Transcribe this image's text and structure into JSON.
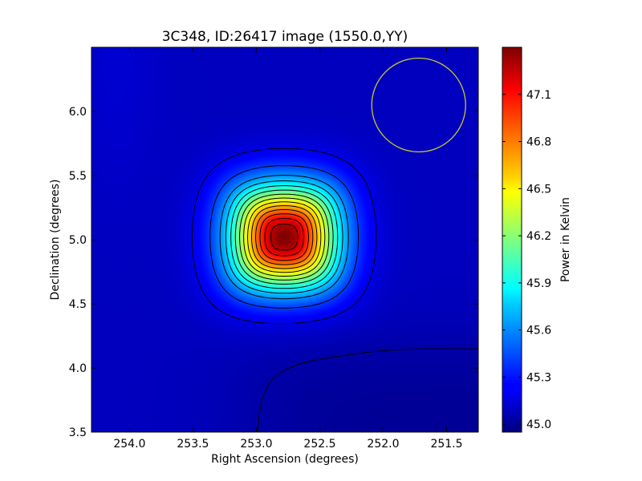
{
  "chart_data": {
    "type": "heatmap",
    "title": "3C348, ID:26417 image (1550.0,YY)",
    "xlabel": "Right Ascension (degrees)",
    "ylabel": "Declination (degrees)",
    "colorbar_label": "Power in Kelvin",
    "x_reversed": true,
    "xlim": [
      254.3,
      251.25
    ],
    "ylim": [
      3.5,
      6.5
    ],
    "x_ticks": [
      {
        "value": 254.0,
        "label": "254.0"
      },
      {
        "value": 253.5,
        "label": "253.5"
      },
      {
        "value": 253.0,
        "label": "253.0"
      },
      {
        "value": 252.5,
        "label": "252.5"
      },
      {
        "value": 252.0,
        "label": "252.0"
      },
      {
        "value": 251.5,
        "label": "251.5"
      }
    ],
    "y_ticks": [
      {
        "value": 3.5,
        "label": "3.5"
      },
      {
        "value": 4.0,
        "label": "4.0"
      },
      {
        "value": 4.5,
        "label": "4.5"
      },
      {
        "value": 5.0,
        "label": "5.0"
      },
      {
        "value": 5.5,
        "label": "5.5"
      },
      {
        "value": 6.0,
        "label": "6.0"
      }
    ],
    "colorbar_range": [
      44.95,
      47.4
    ],
    "colorbar_ticks": [
      {
        "value": 45.0,
        "label": "45.0"
      },
      {
        "value": 45.3,
        "label": "45.3"
      },
      {
        "value": 45.6,
        "label": "45.6"
      },
      {
        "value": 45.9,
        "label": "45.9"
      },
      {
        "value": 46.2,
        "label": "46.2"
      },
      {
        "value": 46.5,
        "label": "46.5"
      },
      {
        "value": 46.8,
        "label": "46.8"
      },
      {
        "value": 47.1,
        "label": "47.1"
      }
    ],
    "colormap": "jet",
    "source": {
      "ra": 252.78,
      "dec": 5.02,
      "peak": 47.4
    },
    "background_level": 45.1,
    "contour_levels": [
      45.05,
      45.2,
      45.4,
      45.6,
      45.75,
      45.9,
      46.05,
      46.2,
      46.35,
      46.5,
      46.65,
      46.8,
      46.95,
      47.1,
      47.25
    ],
    "beam": {
      "ra": 251.72,
      "dec": 6.05,
      "radius_deg": 0.37,
      "color": "#c8c832"
    }
  }
}
